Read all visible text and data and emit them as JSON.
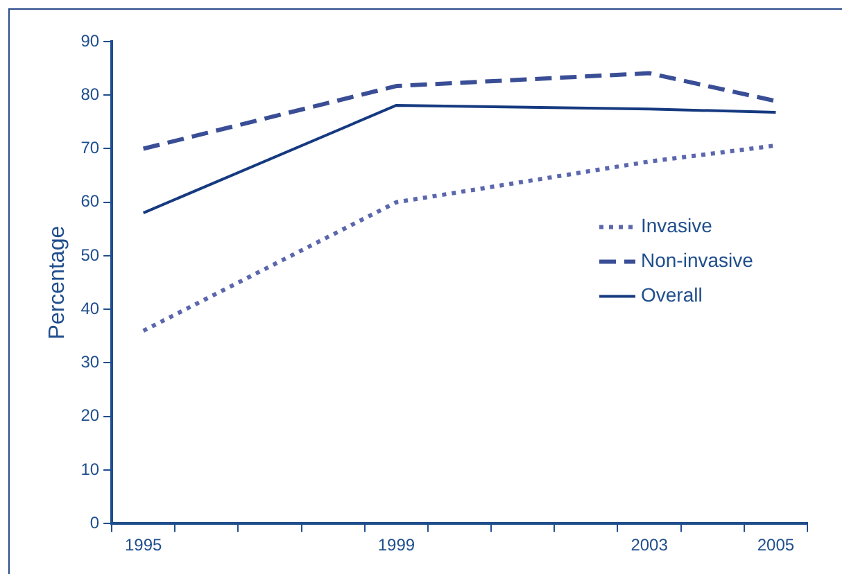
{
  "chart_data": {
    "type": "line",
    "ylabel": "Percentage",
    "categories": [
      "1995",
      null,
      null,
      null,
      "1999",
      null,
      null,
      null,
      "2003",
      null,
      "2005"
    ],
    "series": [
      {
        "name": "Invasive",
        "color": "#5b67ad",
        "line_style": "dotted",
        "values": [
          36,
          null,
          null,
          null,
          60,
          null,
          null,
          null,
          67.6,
          null,
          70.6
        ]
      },
      {
        "name": "Non-invasive",
        "color": "#3a4e96",
        "line_style": "dashed",
        "values": [
          70,
          null,
          null,
          null,
          81.7,
          null,
          null,
          null,
          84.1,
          null,
          78.9
        ]
      },
      {
        "name": "Overall",
        "color": "#163a80",
        "line_style": "solid",
        "values": [
          58,
          null,
          null,
          null,
          78.1,
          null,
          null,
          null,
          77.4,
          null,
          76.8
        ]
      }
    ],
    "ylim": [
      0,
      90
    ],
    "yticks": [
      0,
      10,
      20,
      30,
      40,
      50,
      60,
      70,
      80,
      90
    ],
    "grid": false,
    "legend": "right",
    "marker": "none"
  }
}
